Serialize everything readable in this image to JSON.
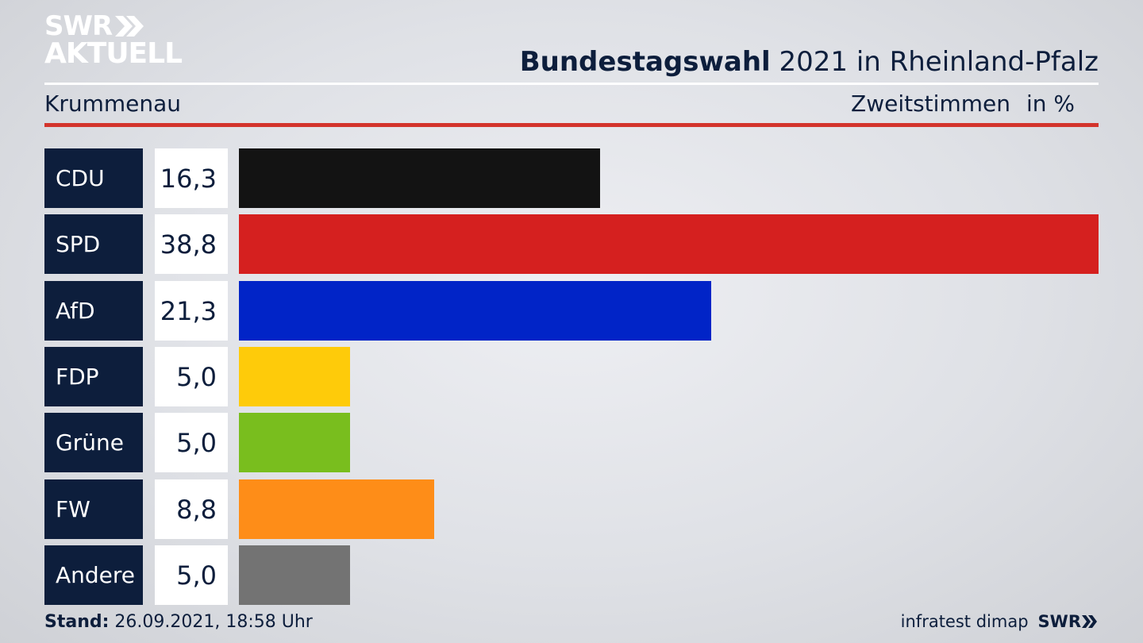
{
  "brand": {
    "line1": "SWR",
    "line2": "AKTUELL"
  },
  "header": {
    "title_bold": "Bundestagswahl",
    "title_rest": " 2021 in Rheinland-Pfalz",
    "subtitle": "Krummenau",
    "vote_type": "Zweitstimmen",
    "unit": "in %"
  },
  "chart_data": {
    "type": "bar",
    "orientation": "horizontal",
    "categories": [
      "CDU",
      "SPD",
      "AfD",
      "FDP",
      "Grüne",
      "FW",
      "Andere"
    ],
    "values": [
      16.3,
      38.8,
      21.3,
      5.0,
      5.0,
      8.8,
      5.0
    ],
    "value_labels": [
      "16,3",
      "38,8",
      "21,3",
      "5,0",
      "5,0",
      "8,8",
      "5,0"
    ],
    "colors": [
      "#131313",
      "#d5201f",
      "#0124c7",
      "#fecb0a",
      "#79be1e",
      "#fe8d18",
      "#737373"
    ],
    "xlim": [
      0,
      38.8
    ]
  },
  "footer": {
    "stand_label": "Stand:",
    "stand_value": " 26.09.2021, 18:58 Uhr",
    "source": "infratest dimap",
    "source_brand": "SWR"
  }
}
